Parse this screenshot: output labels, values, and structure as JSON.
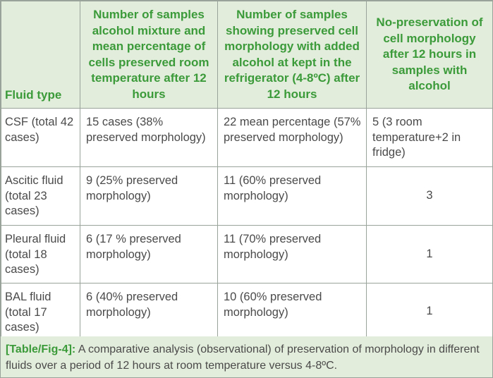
{
  "header": {
    "fluid_type": "Fluid type",
    "col2": "Number of samples alcohol mixture and mean percentage of cells preserved room temperature after 12 hours",
    "col3": "Number of samples showing preserved cell morphology with added alcohol at kept in the refrigerator (4-8ºC) after 12 hours",
    "col4": "No-preservation of cell morphology after 12 hours in samples with alcohol"
  },
  "rows": [
    {
      "fluid": "CSF (total 42 cases)",
      "room_temp": "15 cases (38% preserved morphology)",
      "refrigerator": "22 mean percentage (57% preserved morphology)",
      "no_preservation": "5 (3 room temperature+2 in fridge)"
    },
    {
      "fluid": "Ascitic fluid (total 23 cases)",
      "room_temp": "9 (25% preserved morphology)",
      "refrigerator": "11 (60% preserved morphology)",
      "no_preservation": "3"
    },
    {
      "fluid": "Pleural fluid (total 18 cases)",
      "room_temp": "6 (17 % preserved morphology)",
      "refrigerator": "11 (70% preserved morphology)",
      "no_preservation": "1"
    },
    {
      "fluid": "BAL fluid (total 17 cases)",
      "room_temp": "6 (40% preserved morphology)",
      "refrigerator": "10 (60% preserved morphology)",
      "no_preservation": "1"
    }
  ],
  "caption": {
    "label": "[Table/Fig-4]:",
    "text": " A comparative analysis (observational) of preservation of morphology in different fluids over a period of 12 hours at room temperature versus 4-8ºC."
  }
}
